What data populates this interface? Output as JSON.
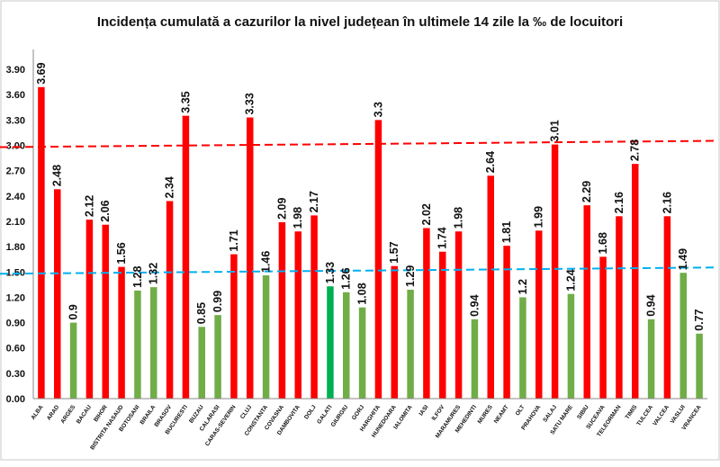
{
  "chart_data": {
    "type": "bar",
    "title": "Incidența cumulată a cazurilor la nivel județean în ultimele 14 zile la ‰ de locuitori",
    "xlabel": "",
    "ylabel": "",
    "ylim": [
      0,
      4.05
    ],
    "yticks": [
      "0.00",
      "0.30",
      "0.60",
      "0.90",
      "1.20",
      "1.50",
      "1.80",
      "2.10",
      "2.40",
      "2.70",
      "3.00",
      "3.30",
      "3.60",
      "3.90"
    ],
    "grid": false,
    "legend": "none",
    "categories": [
      "ALBA",
      "ARAD",
      "ARGES",
      "BACAU",
      "BIHOR",
      "BISTRITA NASAUD",
      "BOTOSANI",
      "BRAILA",
      "BRASOV",
      "BUCURESTI",
      "BUZAU",
      "CALARASI",
      "CARAS-SEVERIN",
      "CLUJ",
      "CONSTANTA",
      "COVASNA",
      "DAMBOVITA",
      "DOLJ",
      "GALATI",
      "GIURGIU",
      "GORJ",
      "HARGHITA",
      "HUNEDOARA",
      "IALOMITA",
      "IASI",
      "ILFOV",
      "MARAMURES",
      "MEHEDINTI",
      "MURES",
      "NEAMT",
      "OLT",
      "PRAHOVA",
      "SALAJ",
      "SATU MARE",
      "SIBIU",
      "SUCEAVA",
      "TELEORMAN",
      "TIMIS",
      "TULCEA",
      "VALCEA",
      "VASLUI",
      "VRANCEA"
    ],
    "values": [
      3.69,
      2.48,
      0.9,
      2.12,
      2.06,
      1.56,
      1.28,
      1.32,
      2.34,
      3.35,
      0.85,
      0.99,
      1.71,
      3.33,
      1.46,
      2.09,
      1.98,
      2.17,
      1.33,
      1.26,
      1.08,
      3.3,
      1.57,
      1.29,
      2.02,
      1.74,
      1.98,
      0.94,
      2.64,
      1.81,
      1.2,
      1.99,
      3.01,
      1.24,
      2.29,
      1.68,
      2.16,
      2.78,
      0.94,
      2.16,
      1.49,
      0.77
    ],
    "data_labels": [
      "3.69",
      "2.48",
      "0.9",
      "2.12",
      "2.06",
      "1.56",
      "1.28",
      "1.32",
      "2.34",
      "3.35",
      "0.85",
      "0.99",
      "1.71",
      "3.33",
      "1.46",
      "2.09",
      "1.98",
      "2.17",
      "1.33",
      "1.26",
      "1.08",
      "3.3",
      "1.57",
      "1.29",
      "2.02",
      "1.74",
      "1.98",
      "0.94",
      "2.64",
      "1.81",
      "1.2",
      "1.99",
      "3.01",
      "1.24",
      "2.29",
      "1.68",
      "2.16",
      "2.78",
      "0.94",
      "2.16",
      "1.49",
      "0.77"
    ],
    "reference_lines": [
      {
        "value": 3.0,
        "color": "#ff0000",
        "style": "dashed"
      },
      {
        "value": 1.5,
        "color": "#00b0f0",
        "style": "dashed"
      }
    ],
    "colors": {
      "high": "#ff0000",
      "low": "#70ad47",
      "galati": "#00b050"
    }
  }
}
